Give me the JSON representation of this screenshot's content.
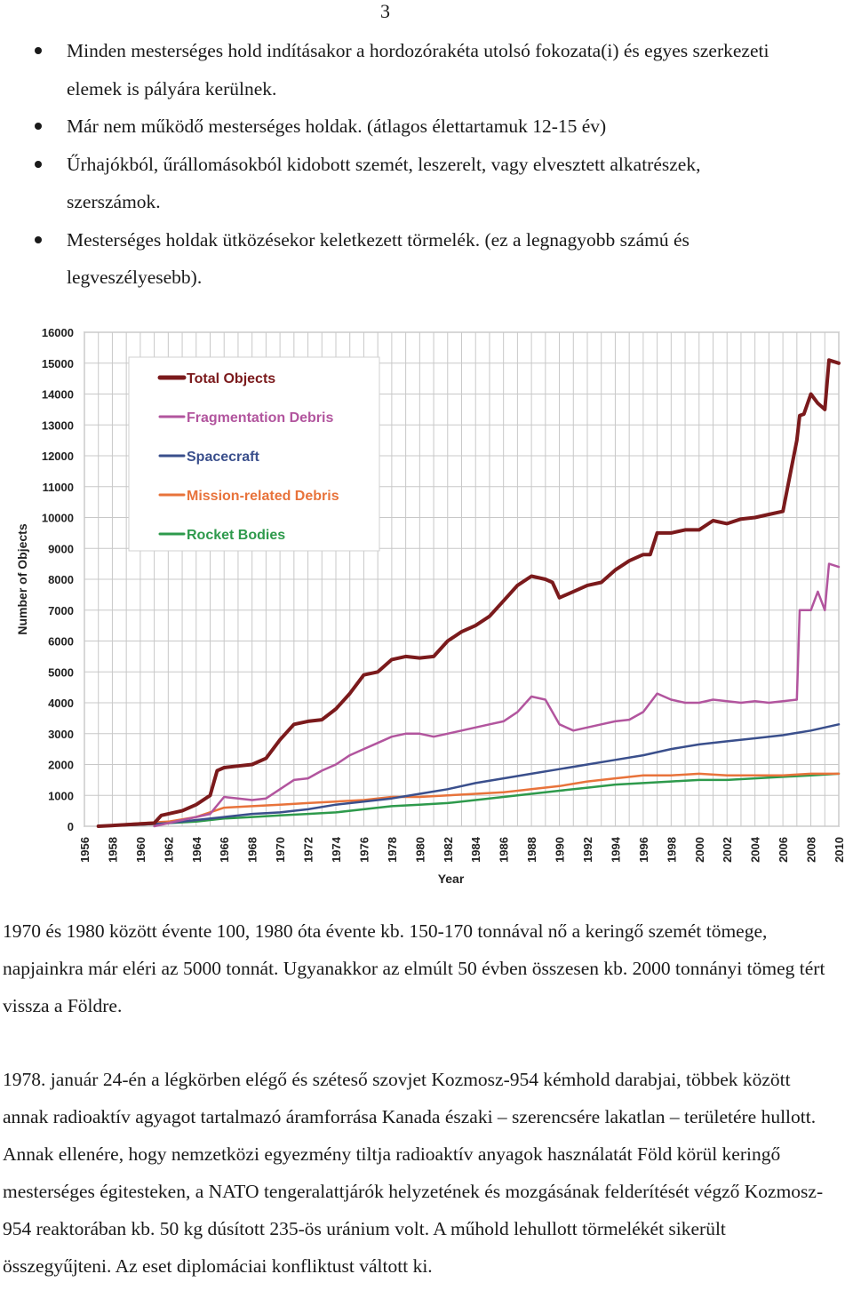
{
  "page_number": "3",
  "bullets": [
    "Minden mesterséges hold indításakor a hordozórakéta utolsó fokozata(i) és egyes szerkezeti elemek is pályára kerülnek.",
    "Már nem működő mesterséges holdak. (átlagos élettartamuk 12-15 év)",
    "Űrhajókból, űrállomásokból kidobott szemét, leszerelt, vagy elvesztett alkatrészek, szerszámok.",
    "Mesterséges holdak ütközésekor keletkezett törmelék. (ez a legnagyobb számú és legveszélyesebb)."
  ],
  "chart_data": {
    "type": "line",
    "xlabel": "Year",
    "ylabel": "Number of Objects",
    "xlim": [
      1956,
      2010
    ],
    "ylim": [
      0,
      16000
    ],
    "x_ticks": [
      "1956",
      "1958",
      "1960",
      "1962",
      "1964",
      "1966",
      "1968",
      "1970",
      "1972",
      "1974",
      "1976",
      "1978",
      "1980",
      "1982",
      "1984",
      "1986",
      "1988",
      "1990",
      "1992",
      "1994",
      "1996",
      "1998",
      "2000",
      "2002",
      "2004",
      "2006",
      "2008",
      "2010"
    ],
    "y_ticks": [
      "0",
      "1000",
      "2000",
      "3000",
      "4000",
      "5000",
      "6000",
      "7000",
      "8000",
      "9000",
      "10000",
      "11000",
      "12000",
      "13000",
      "14000",
      "15000",
      "16000"
    ],
    "grid": true,
    "legend_position": "top-left",
    "series": [
      {
        "name": "Total Objects",
        "color": "#7b1a1c",
        "x": [
          1957,
          1959,
          1961,
          1961.5,
          1962,
          1963,
          1964,
          1965,
          1965.5,
          1966,
          1967,
          1968,
          1969,
          1970,
          1971,
          1972,
          1973,
          1974,
          1975,
          1976,
          1977,
          1978,
          1979,
          1980,
          1981,
          1982,
          1983,
          1984,
          1985,
          1986,
          1987,
          1988,
          1989,
          1989.5,
          1990,
          1991,
          1992,
          1993,
          1994,
          1995,
          1996,
          1996.5,
          1997,
          1998,
          1999,
          2000,
          2001,
          2002,
          2003,
          2004,
          2005,
          2006,
          2007,
          2007.2,
          2007.5,
          2008,
          2008.5,
          2009,
          2009.3,
          2010
        ],
        "y": [
          0,
          50,
          100,
          350,
          400,
          500,
          700,
          1000,
          1800,
          1900,
          1950,
          2000,
          2200,
          2800,
          3300,
          3400,
          3450,
          3800,
          4300,
          4900,
          5000,
          5400,
          5500,
          5450,
          5500,
          6000,
          6300,
          6500,
          6800,
          7300,
          7800,
          8100,
          8000,
          7900,
          7400,
          7600,
          7800,
          7900,
          8300,
          8600,
          8800,
          8800,
          9500,
          9500,
          9600,
          9600,
          9900,
          9800,
          9950,
          10000,
          10100,
          10200,
          12500,
          13300,
          13350,
          14000,
          13700,
          13500,
          15100,
          15000
        ]
      },
      {
        "name": "Fragmentation Debris",
        "color": "#b2559e",
        "x": [
          1961,
          1962,
          1963,
          1964,
          1965,
          1966,
          1967,
          1968,
          1969,
          1970,
          1971,
          1972,
          1973,
          1974,
          1975,
          1976,
          1977,
          1978,
          1979,
          1980,
          1981,
          1982,
          1983,
          1984,
          1985,
          1986,
          1987,
          1988,
          1989,
          1990,
          1991,
          1992,
          1993,
          1994,
          1995,
          1996,
          1997,
          1998,
          1999,
          2000,
          2001,
          2002,
          2003,
          2004,
          2005,
          2006,
          2007,
          2007.2,
          2008,
          2008.5,
          2009,
          2009.3,
          2010
        ],
        "y": [
          0,
          100,
          200,
          300,
          400,
          950,
          900,
          850,
          900,
          1200,
          1500,
          1550,
          1800,
          2000,
          2300,
          2500,
          2700,
          2900,
          3000,
          3000,
          2900,
          3000,
          3100,
          3200,
          3300,
          3400,
          3700,
          4200,
          4100,
          3300,
          3100,
          3200,
          3300,
          3400,
          3450,
          3700,
          4300,
          4100,
          4000,
          4000,
          4100,
          4050,
          4000,
          4050,
          4000,
          4050,
          4100,
          7000,
          7000,
          7600,
          7000,
          8500,
          8400
        ]
      },
      {
        "name": "Spacecraft",
        "color": "#3a4f8c",
        "x": [
          1957,
          1960,
          1962,
          1964,
          1966,
          1968,
          1970,
          1972,
          1974,
          1976,
          1978,
          1980,
          1982,
          1984,
          1986,
          1988,
          1990,
          1992,
          1994,
          1996,
          1998,
          2000,
          2002,
          2004,
          2006,
          2008,
          2010
        ],
        "y": [
          0,
          50,
          100,
          200,
          300,
          400,
          450,
          550,
          700,
          800,
          900,
          1050,
          1200,
          1400,
          1550,
          1700,
          1850,
          2000,
          2150,
          2300,
          2500,
          2650,
          2750,
          2850,
          2950,
          3100,
          3300
        ]
      },
      {
        "name": "Mission-related Debris",
        "color": "#e8733b",
        "x": [
          1957,
          1960,
          1962,
          1964,
          1966,
          1968,
          1970,
          1972,
          1974,
          1976,
          1978,
          1980,
          1982,
          1984,
          1986,
          1988,
          1990,
          1992,
          1994,
          1996,
          1998,
          2000,
          2002,
          2004,
          2006,
          2008,
          2010
        ],
        "y": [
          0,
          100,
          150,
          300,
          600,
          650,
          700,
          750,
          800,
          850,
          950,
          950,
          1000,
          1050,
          1100,
          1200,
          1300,
          1450,
          1550,
          1650,
          1650,
          1700,
          1650,
          1650,
          1650,
          1700,
          1700
        ]
      },
      {
        "name": "Rocket Bodies",
        "color": "#2e9a4c",
        "x": [
          1957,
          1960,
          1962,
          1964,
          1966,
          1968,
          1970,
          1972,
          1974,
          1976,
          1978,
          1980,
          1982,
          1984,
          1986,
          1988,
          1990,
          1992,
          1994,
          1996,
          1998,
          2000,
          2002,
          2004,
          2006,
          2008,
          2010
        ],
        "y": [
          0,
          50,
          100,
          150,
          250,
          300,
          350,
          400,
          450,
          550,
          650,
          700,
          750,
          850,
          950,
          1050,
          1150,
          1250,
          1350,
          1400,
          1450,
          1500,
          1500,
          1550,
          1600,
          1650,
          1700
        ]
      }
    ]
  },
  "paragraph1": "1970 és 1980 között évente 100, 1980 óta évente kb. 150-170 tonnával nő a keringő szemét tömege, napjainkra már eléri az 5000 tonnát. Ugyanakkor az elmúlt 50 évben összesen kb. 2000 tonnányi tömeg tért vissza a Földre.",
  "paragraph2": "1978. január 24-én a légkörben elégő és széteső szovjet Kozmosz-954 kémhold darabjai, többek között annak radioaktív agyagot tartalmazó áramforrása Kanada északi – szerencsére lakatlan – területére hullott. Annak ellenére, hogy nemzetközi egyezmény tiltja radioaktív anyagok használatát Föld körül keringő mesterséges égitesteken, a NATO tengeralattjárók helyzetének és mozgásának felderítését végző Kozmosz-954 reaktorában kb. 50 kg dúsított 235-ös uránium volt. A műhold lehullott törmelékét sikerült összegyűjteni. Az eset diplomáciai konfliktust váltott ki."
}
